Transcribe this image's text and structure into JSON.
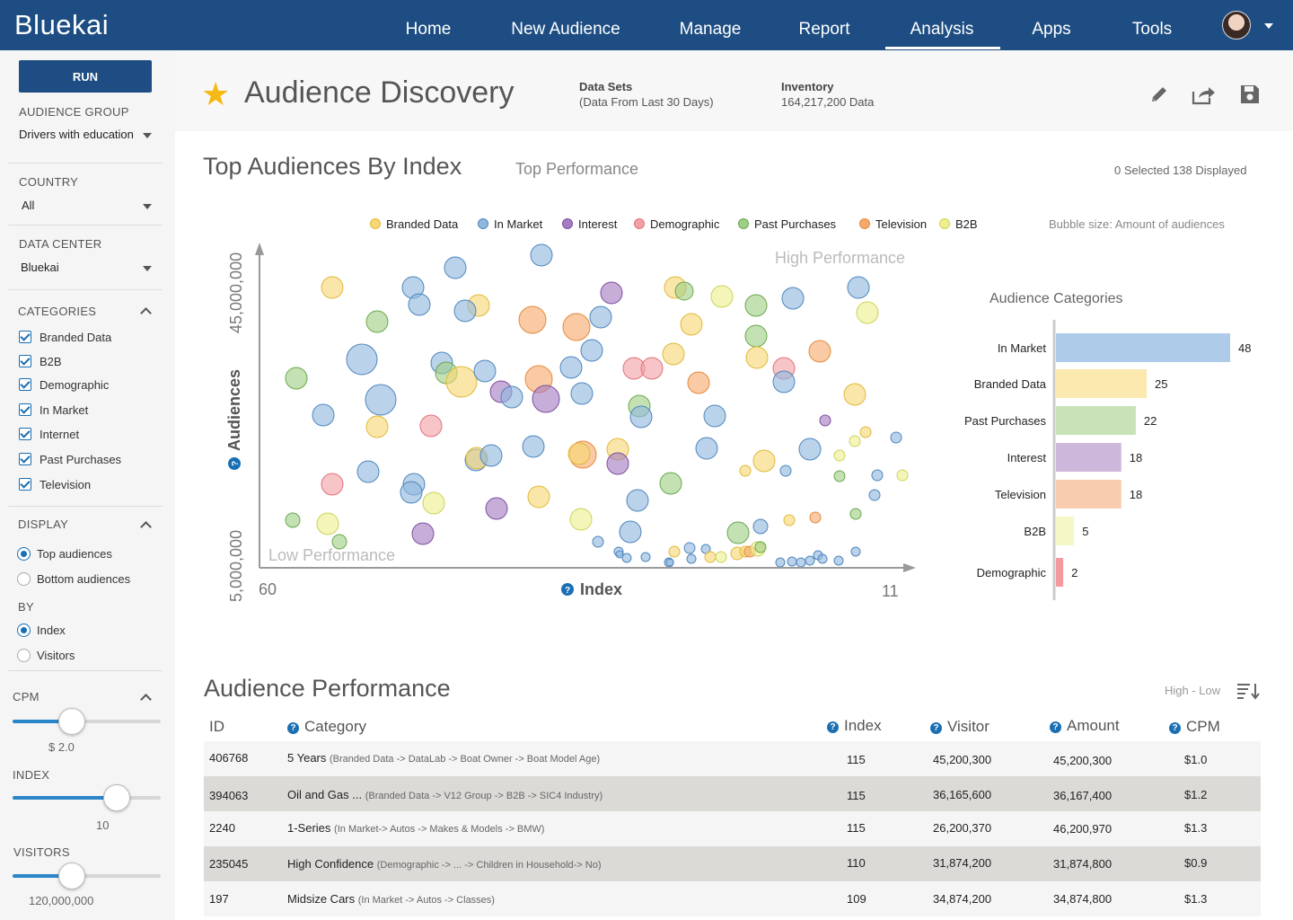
{
  "app": {
    "logo": "Bluekai"
  },
  "nav": {
    "items": [
      "Home",
      "New Audience",
      "Manage",
      "Report",
      "Analysis",
      "Apps",
      "Tools"
    ],
    "active": "Analysis"
  },
  "sidebar": {
    "run_label": "RUN",
    "audience_group_label": "AUDIENCE GROUP",
    "audience_group_value": "Drivers with education",
    "country_label": "COUNTRY",
    "country_value": "All",
    "data_center_label": "DATA CENTER",
    "data_center_value": "Bluekai",
    "categories_label": "CATEGORIES",
    "categories": [
      "Branded Data",
      "B2B",
      "Demographic",
      "In Market",
      "Internet",
      "Past Purchases",
      "Television"
    ],
    "display_label": "DISPLAY",
    "display_options": [
      "Top audiences",
      "Bottom audiences"
    ],
    "display_selected": "Top audiences",
    "by_label": "BY",
    "by_options": [
      "Index",
      "Visitors"
    ],
    "by_selected": "Index",
    "cpm_label": "CPM",
    "cpm_value": "$ 2.0",
    "cpm_level": 0.4,
    "index_label": "INDEX",
    "index_value": "10",
    "index_level": 0.7,
    "visitors_label": "VISITORS",
    "visitors_value": "120,000,000",
    "visitors_level": 0.4
  },
  "header": {
    "title": "Audience Discovery",
    "datasets_label": "Data Sets",
    "datasets_value": "(Data From Last 30 Days)",
    "inventory_label": "Inventory",
    "inventory_value": "164,217,200 Data",
    "icons": [
      "pencil-icon",
      "share-icon",
      "save-icon"
    ]
  },
  "top_section": {
    "title": "Top Audiences By Index",
    "subtitle": "Top Performance",
    "status": "0 Selected 138 Displayed",
    "bubble_note": "Bubble size: Amount of audiences",
    "high_label": "High Performance",
    "low_label": "Low Performance"
  },
  "colors": {
    "Branded Data": "#f7d774",
    "In Market": "#8fb8de",
    "Interest": "#a57cc2",
    "Demographic": "#f2a0a6",
    "Past Purchases": "#9fcf85",
    "Television": "#f5a96a",
    "B2B": "#eef08e"
  },
  "chart_data": [
    {
      "type": "scatter",
      "title": "",
      "xlabel": "Index",
      "ylabel": "Audiences",
      "x_ticks": [
        "60",
        "11"
      ],
      "y_ticks": [
        "5,000,000",
        "45,000,000"
      ],
      "legend": [
        "Branded Data",
        "In Market",
        "Interest",
        "Demographic",
        "Past Purchases",
        "Television",
        "B2B"
      ],
      "legend_position": "top"
    },
    {
      "type": "bar",
      "title": "Audience Categories",
      "categories": [
        "In Market",
        "Branded Data",
        "Past Purchases",
        "Interest",
        "Television",
        "B2B",
        "Demographic"
      ],
      "values": [
        48,
        25,
        22,
        18,
        18,
        5,
        2
      ]
    }
  ],
  "performance": {
    "title": "Audience Performance",
    "sort_label": "High - Low",
    "columns": [
      "ID",
      "Category",
      "Index",
      "Visitor",
      "Amount",
      "CPM"
    ],
    "rows": [
      {
        "id": "406768",
        "name": "5 Years",
        "path": "(Branded Data -> DataLab -> Boat Owner -> Boat Model Age)",
        "index": "115",
        "visitor": "45,200,300",
        "amount": "45,200,300",
        "cpm": "$1.0"
      },
      {
        "id": "394063",
        "name": "Oil and Gas ...",
        "path": "(Branded Data -> V12 Group -> B2B -> SIC4 Industry)",
        "index": "115",
        "visitor": "36,165,600",
        "amount": "36,167,400",
        "cpm": "$1.2"
      },
      {
        "id": "2240",
        "name": "1-Series",
        "path": "(In Market-> Autos -> Makes & Models -> BMW)",
        "index": "115",
        "visitor": "26,200,370",
        "amount": "46,200,970",
        "cpm": "$1.3"
      },
      {
        "id": "235045",
        "name": "High Confidence",
        "path": "(Demographic -> ... -> Children in Household-> No)",
        "index": "110",
        "visitor": "31,874,200",
        "amount": "31,874,800",
        "cpm": "$0.9"
      },
      {
        "id": "197",
        "name": "Midsize Cars",
        "path": "(In Market -> Autos -> Classes)",
        "index": "109",
        "visitor": "34,874,200",
        "amount": "34,874,800",
        "cpm": "$1.3"
      }
    ]
  }
}
